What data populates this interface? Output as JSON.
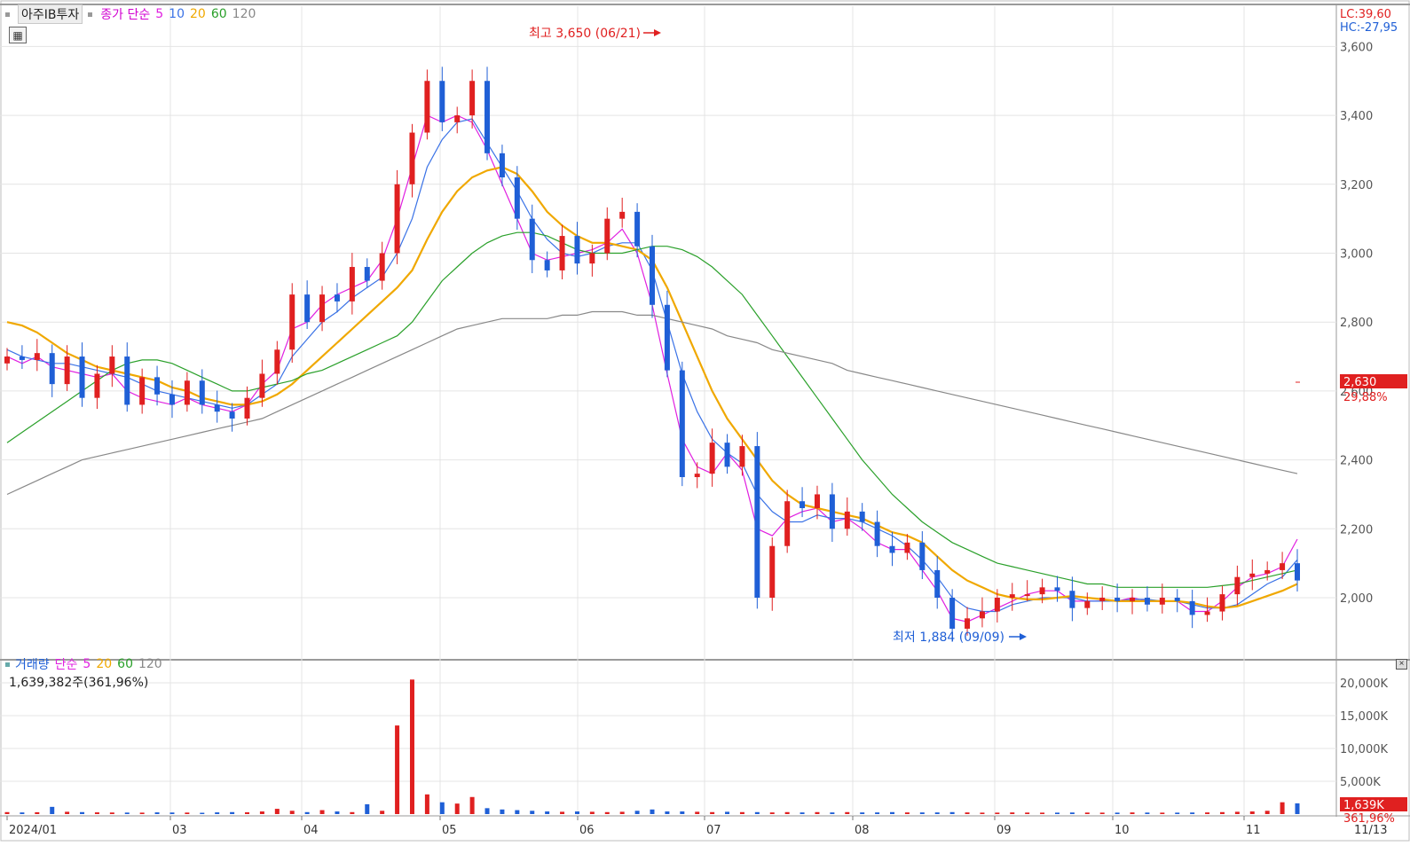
{
  "header": {
    "stock_name": "아주IB투자",
    "price_label": "종가 단순",
    "ma_periods": [
      "5",
      "10",
      "20",
      "60",
      "120"
    ],
    "lc": "LC:39,60",
    "hc": "HC:-27,95"
  },
  "volume_header": {
    "label": "거래량",
    "method": "단순",
    "ma_periods": [
      "5",
      "20",
      "60",
      "120"
    ],
    "readout": "1,639,382주(361,96%)"
  },
  "colors": {
    "up": "#e02020",
    "down": "#1f5fd6",
    "ma5": "#e020e0",
    "ma10": "#3a72e6",
    "ma20": "#f0a800",
    "ma60": "#2aa02a",
    "ma120": "#888888",
    "grid": "#e4e4e4"
  },
  "chart_data": [
    {
      "type": "candlestick",
      "y_ticks": [
        2000,
        2200,
        2400,
        2600,
        2800,
        3000,
        3200,
        3400,
        3600
      ],
      "y_tick_labels": [
        "2,000",
        "2,200",
        "2,400",
        "2,600",
        "2,800",
        "3,000",
        "3,200",
        "3,400",
        "3,600"
      ],
      "x_labels": [
        "2024/01",
        "03",
        "04",
        "05",
        "06",
        "07",
        "08",
        "09",
        "10",
        "11",
        "11/13"
      ],
      "current_price": 2630,
      "current_price_label": "2,630",
      "current_change_label": "29,88%",
      "annotations": {
        "high_label": "최고 3,650 (06/21)",
        "low_label": "최저 1,884 (09/09)",
        "high_value": 3650,
        "low_value": 1884
      },
      "ohlc_anchors": [
        [
          2700,
          2700
        ],
        [
          2690,
          2690
        ],
        [
          2710,
          2710
        ],
        [
          2620,
          2620
        ],
        [
          2700,
          2700
        ],
        [
          2580,
          2580
        ],
        [
          2650,
          2650
        ],
        [
          2700,
          2700
        ],
        [
          2560,
          2560
        ],
        [
          2640,
          2640
        ],
        [
          2590,
          2590
        ],
        [
          2560,
          2560
        ],
        [
          2630,
          2630
        ],
        [
          2560,
          2560
        ],
        [
          2540,
          2540
        ],
        [
          2520,
          2520
        ],
        [
          2580,
          2580
        ],
        [
          2650,
          2650
        ],
        [
          2720,
          2720
        ],
        [
          2880,
          2880
        ],
        [
          2800,
          2800
        ],
        [
          2880,
          2880
        ],
        [
          2860,
          2860
        ],
        [
          2960,
          2960
        ],
        [
          2920,
          2920
        ],
        [
          3000,
          3000
        ],
        [
          3200,
          3200
        ],
        [
          3350,
          3350
        ],
        [
          3500,
          3500
        ],
        [
          3380,
          3380
        ],
        [
          3400,
          3400
        ],
        [
          3500,
          3500
        ],
        [
          3290,
          3290
        ],
        [
          3220,
          3220
        ],
        [
          3100,
          3100
        ],
        [
          2980,
          2980
        ],
        [
          2950,
          2950
        ],
        [
          3050,
          3050
        ],
        [
          2970,
          2970
        ],
        [
          3000,
          3000
        ],
        [
          3100,
          3100
        ],
        [
          3120,
          3120
        ],
        [
          3020,
          3020
        ],
        [
          2850,
          2850
        ],
        [
          2660,
          2660
        ],
        [
          2350,
          2350
        ],
        [
          2360,
          2360
        ],
        [
          2450,
          2450
        ],
        [
          2380,
          2380
        ],
        [
          2440,
          2440
        ],
        [
          2000,
          2000
        ],
        [
          2150,
          2150
        ],
        [
          2280,
          2280
        ],
        [
          2260,
          2260
        ],
        [
          2300,
          2300
        ],
        [
          2200,
          2200
        ],
        [
          2250,
          2250
        ],
        [
          2220,
          2220
        ],
        [
          2150,
          2150
        ],
        [
          2130,
          2130
        ],
        [
          2160,
          2160
        ],
        [
          2080,
          2080
        ],
        [
          2000,
          2000
        ],
        [
          1910,
          1910
        ],
        [
          1940,
          1940
        ],
        [
          1960,
          1960
        ],
        [
          2000,
          2000
        ],
        [
          2010,
          2010
        ],
        [
          2010,
          2010
        ],
        [
          2030,
          2030
        ],
        [
          2020,
          2020
        ],
        [
          1970,
          1970
        ],
        [
          1990,
          1990
        ],
        [
          2000,
          2000
        ],
        [
          1990,
          1990
        ],
        [
          2000,
          2000
        ],
        [
          1980,
          1980
        ],
        [
          2000,
          2000
        ],
        [
          1990,
          1990
        ],
        [
          1950,
          1950
        ],
        [
          1960,
          1960
        ],
        [
          2010,
          2010
        ],
        [
          2060,
          2060
        ],
        [
          2070,
          2070
        ],
        [
          2080,
          2080
        ],
        [
          2100,
          2100
        ],
        [
          2050,
          2050
        ]
      ],
      "series": [
        {
          "name": "5",
          "values": [
            2700,
            2680,
            2700,
            2670,
            2660,
            2650,
            2640,
            2650,
            2600,
            2580,
            2570,
            2560,
            2580,
            2560,
            2550,
            2540,
            2560,
            2620,
            2660,
            2780,
            2800,
            2850,
            2880,
            2900,
            2920,
            2980,
            3100,
            3250,
            3400,
            3380,
            3400,
            3380,
            3300,
            3200,
            3100,
            3000,
            2980,
            2990,
            3000,
            3010,
            3030,
            3070,
            3000,
            2850,
            2650,
            2460,
            2380,
            2360,
            2420,
            2370,
            2200,
            2180,
            2230,
            2250,
            2260,
            2220,
            2230,
            2200,
            2160,
            2140,
            2140,
            2080,
            2020,
            1940,
            1930,
            1950,
            1970,
            1990,
            2010,
            2020,
            2020,
            1990,
            1990,
            1990,
            1990,
            2000,
            1990,
            1990,
            1990,
            1960,
            1960,
            1990,
            2030,
            2060,
            2070,
            2090,
            2170
          ]
        },
        {
          "name": "10",
          "values": [
            2720,
            2700,
            2690,
            2680,
            2680,
            2670,
            2660,
            2650,
            2640,
            2620,
            2600,
            2590,
            2580,
            2570,
            2560,
            2550,
            2560,
            2590,
            2620,
            2700,
            2750,
            2800,
            2830,
            2870,
            2900,
            2930,
            3000,
            3100,
            3250,
            3330,
            3380,
            3390,
            3320,
            3250,
            3180,
            3100,
            3040,
            3000,
            2990,
            3000,
            3020,
            3030,
            3030,
            2950,
            2800,
            2650,
            2540,
            2460,
            2420,
            2390,
            2300,
            2250,
            2220,
            2220,
            2240,
            2230,
            2230,
            2220,
            2200,
            2180,
            2150,
            2110,
            2060,
            2000,
            1970,
            1960,
            1960,
            1980,
            1990,
            2000,
            2000,
            2000,
            1990,
            1990,
            1990,
            1995,
            1995,
            1990,
            1990,
            1980,
            1970,
            1970,
            1980,
            2010,
            2040,
            2060,
            2110
          ]
        },
        {
          "name": "20",
          "values": [
            2800,
            2790,
            2770,
            2740,
            2710,
            2690,
            2670,
            2660,
            2650,
            2640,
            2630,
            2610,
            2600,
            2580,
            2570,
            2560,
            2560,
            2570,
            2590,
            2620,
            2660,
            2700,
            2740,
            2780,
            2820,
            2860,
            2900,
            2950,
            3040,
            3120,
            3180,
            3220,
            3240,
            3250,
            3230,
            3180,
            3120,
            3080,
            3050,
            3030,
            3030,
            3020,
            3010,
            2980,
            2900,
            2800,
            2700,
            2600,
            2520,
            2460,
            2400,
            2340,
            2300,
            2270,
            2260,
            2250,
            2240,
            2230,
            2210,
            2190,
            2180,
            2160,
            2120,
            2080,
            2050,
            2030,
            2010,
            2000,
            1995,
            1995,
            2000,
            2005,
            2000,
            1995,
            1990,
            1990,
            1990,
            1990,
            1990,
            1985,
            1975,
            1970,
            1975,
            1990,
            2005,
            2020,
            2040
          ]
        },
        {
          "name": "60",
          "values": [
            2450,
            2480,
            2510,
            2540,
            2570,
            2600,
            2630,
            2660,
            2680,
            2690,
            2690,
            2680,
            2660,
            2640,
            2620,
            2600,
            2600,
            2610,
            2620,
            2630,
            2650,
            2660,
            2680,
            2700,
            2720,
            2740,
            2760,
            2800,
            2860,
            2920,
            2960,
            3000,
            3030,
            3050,
            3060,
            3060,
            3050,
            3030,
            3010,
            3000,
            3000,
            3000,
            3010,
            3020,
            3020,
            3010,
            2990,
            2960,
            2920,
            2880,
            2820,
            2760,
            2700,
            2640,
            2580,
            2520,
            2460,
            2400,
            2350,
            2300,
            2260,
            2220,
            2190,
            2160,
            2140,
            2120,
            2100,
            2090,
            2080,
            2070,
            2060,
            2050,
            2040,
            2040,
            2030,
            2030,
            2030,
            2030,
            2030,
            2030,
            2030,
            2035,
            2040,
            2050,
            2060,
            2070,
            2080
          ]
        },
        {
          "name": "120",
          "values": [
            2300,
            2320,
            2340,
            2360,
            2380,
            2400,
            2410,
            2420,
            2430,
            2440,
            2450,
            2460,
            2470,
            2480,
            2490,
            2500,
            2510,
            2520,
            2540,
            2560,
            2580,
            2600,
            2620,
            2640,
            2660,
            2680,
            2700,
            2720,
            2740,
            2760,
            2780,
            2790,
            2800,
            2810,
            2810,
            2810,
            2810,
            2820,
            2820,
            2830,
            2830,
            2830,
            2820,
            2820,
            2810,
            2800,
            2790,
            2780,
            2760,
            2750,
            2740,
            2720,
            2710,
            2700,
            2690,
            2680,
            2660,
            2650,
            2640,
            2630,
            2620,
            2610,
            2600,
            2590,
            2580,
            2570,
            2560,
            2550,
            2540,
            2530,
            2520,
            2510,
            2500,
            2490,
            2480,
            2470,
            2460,
            2450,
            2440,
            2430,
            2420,
            2410,
            2400,
            2390,
            2380,
            2370,
            2360
          ]
        }
      ]
    },
    {
      "type": "bar",
      "y_ticks": [
        5000,
        10000,
        15000,
        20000
      ],
      "y_tick_labels": [
        "5,000K",
        "10,000K",
        "15,000K",
        "20,000K"
      ],
      "current_value_label": "1,639K",
      "current_pct_label": "361,96%",
      "values_k": [
        300,
        250,
        280,
        1100,
        350,
        300,
        260,
        240,
        230,
        220,
        260,
        240,
        230,
        200,
        260,
        300,
        270,
        400,
        800,
        500,
        300,
        600,
        400,
        300,
        1500,
        500,
        13500,
        20500,
        3000,
        1800,
        1600,
        2600,
        900,
        700,
        600,
        500,
        400,
        350,
        400,
        350,
        300,
        350,
        500,
        700,
        400,
        400,
        350,
        300,
        350,
        300,
        300,
        250,
        300,
        250,
        300,
        250,
        300,
        250,
        250,
        300,
        250,
        250,
        250,
        300,
        250,
        220,
        220,
        250,
        230,
        220,
        220,
        240,
        230,
        220,
        220,
        250,
        230,
        220,
        220,
        240,
        250,
        300,
        350,
        400,
        500,
        1800,
        1639
      ]
    }
  ]
}
